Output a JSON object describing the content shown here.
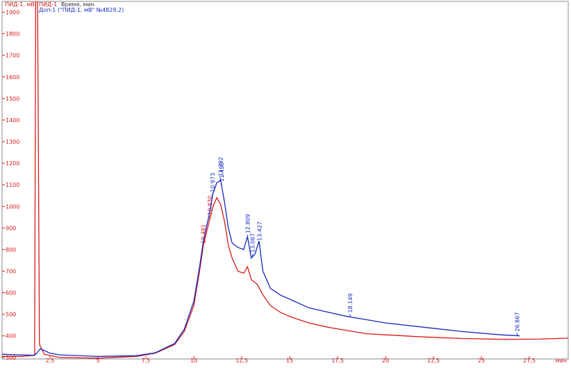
{
  "chart_data": {
    "type": "line",
    "y_label": "ПИД-1, мВ",
    "x_label": "Время, мин",
    "x_unit": "мин",
    "xlim": [
      0,
      29.6
    ],
    "ylim": [
      293,
      1950
    ],
    "xticks": [
      {
        "value": 2.5,
        "label": "2,5"
      },
      5,
      {
        "value": 7.5,
        "label": "7,5"
      },
      10,
      {
        "value": 12.5,
        "label": "12,5"
      },
      15,
      {
        "value": 17.5,
        "label": "17,5"
      },
      20,
      {
        "value": 22.5,
        "label": "22,5"
      },
      25,
      {
        "value": 27.5,
        "label": "27,5"
      }
    ],
    "yticks": [
      300,
      400,
      500,
      600,
      700,
      800,
      900,
      1000,
      1100,
      1200,
      1300,
      1400,
      1500,
      1600,
      1700,
      1800,
      1900
    ],
    "series": [
      {
        "name": "ПИД-1",
        "color": "#d81818",
        "x": [
          0,
          1,
          1.7,
          1.75,
          1.8,
          1.85,
          1.95,
          2.2,
          3,
          5,
          7,
          8,
          9,
          9.5,
          10,
          10.3,
          10.5,
          10.8,
          11,
          11.2,
          11.4,
          11.6,
          11.8,
          12,
          12.3,
          12.6,
          12.8,
          13,
          13.3,
          13.6,
          14,
          14.5,
          15,
          16,
          17,
          18,
          19,
          20,
          22,
          24,
          26,
          28,
          29.6
        ],
        "values": [
          305,
          305,
          310,
          1950,
          1950,
          1950,
          360,
          315,
          300,
          297,
          305,
          320,
          360,
          420,
          540,
          700,
          820,
          930,
          1000,
          1040,
          1010,
          930,
          820,
          760,
          700,
          690,
          720,
          660,
          640,
          590,
          540,
          510,
          490,
          460,
          440,
          425,
          410,
          405,
          395,
          388,
          384,
          385,
          390
        ],
        "peaks": [
          10.481,
          {
            "value": 10.83,
            "label": "10.830"
          }
        ]
      },
      {
        "name": "Доп-1 (\"ПИД-1, мВ\" №4829.2)",
        "color": "#1428c0",
        "x": [
          0,
          1,
          1.7,
          2,
          2.5,
          3,
          5,
          7,
          8,
          9,
          9.5,
          10,
          10.3,
          10.5,
          10.8,
          11,
          11.2,
          11.4,
          11.6,
          11.8,
          12,
          12.3,
          12.6,
          12.8,
          13,
          13.2,
          13.4,
          13.6,
          14,
          14.5,
          15,
          16,
          17,
          18,
          19,
          20,
          22,
          24,
          26,
          27
        ],
        "values": [
          315,
          312,
          310,
          340,
          320,
          312,
          305,
          308,
          322,
          365,
          430,
          560,
          720,
          840,
          960,
          1060,
          1110,
          1120,
          1020,
          900,
          830,
          810,
          800,
          860,
          760,
          780,
          840,
          700,
          620,
          590,
          570,
          530,
          510,
          490,
          475,
          460,
          440,
          420,
          405,
          400
        ],
        "peaks": [
          10.973,
          11.392,
          {
            "value": 11.45,
            "label": "11.450"
          },
          12.809,
          13.067,
          13.427,
          18.149,
          26.867
        ]
      }
    ]
  }
}
